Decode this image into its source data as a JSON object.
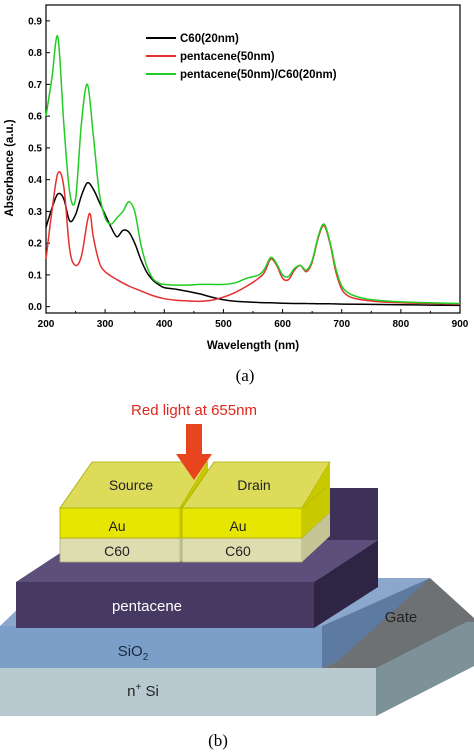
{
  "chart_data": {
    "type": "line",
    "xlabel": "Wavelength (nm)",
    "ylabel": "Absorbance (a.u.)",
    "xlim": [
      200,
      900
    ],
    "ylim": [
      -0.02,
      0.95
    ],
    "xticks": [
      "200",
      "300",
      "400",
      "500",
      "600",
      "700",
      "800",
      "900"
    ],
    "yticks": [
      "0.0",
      "0.1",
      "0.2",
      "0.3",
      "0.4",
      "0.5",
      "0.6",
      "0.7",
      "0.8",
      "0.9"
    ],
    "legend_position": "top-right",
    "series": [
      {
        "name": "C60(20nm)",
        "color": "#000000",
        "x": [
          200,
          210,
          220,
          230,
          240,
          250,
          260,
          270,
          280,
          290,
          300,
          310,
          320,
          330,
          340,
          350,
          360,
          370,
          380,
          390,
          400,
          420,
          440,
          460,
          480,
          500,
          520,
          540,
          560,
          580,
          600,
          620,
          640,
          660,
          680,
          700,
          750,
          800,
          850,
          900
        ],
        "y": [
          0.25,
          0.31,
          0.355,
          0.34,
          0.27,
          0.29,
          0.35,
          0.39,
          0.37,
          0.33,
          0.29,
          0.25,
          0.22,
          0.24,
          0.235,
          0.2,
          0.15,
          0.11,
          0.085,
          0.07,
          0.06,
          0.055,
          0.048,
          0.04,
          0.03,
          0.022,
          0.017,
          0.015,
          0.013,
          0.012,
          0.011,
          0.01,
          0.01,
          0.009,
          0.009,
          0.008,
          0.007,
          0.006,
          0.005,
          0.004
        ]
      },
      {
        "name": "pentacene(50nm)",
        "color": "#e53030",
        "x": [
          200,
          210,
          220,
          230,
          240,
          250,
          260,
          270,
          275,
          280,
          290,
          300,
          320,
          340,
          360,
          380,
          400,
          420,
          440,
          460,
          480,
          500,
          520,
          540,
          560,
          570,
          580,
          590,
          600,
          610,
          620,
          630,
          640,
          650,
          660,
          670,
          680,
          690,
          700,
          710,
          720,
          740,
          760,
          800,
          850,
          900
        ],
        "y": [
          0.15,
          0.3,
          0.42,
          0.38,
          0.18,
          0.13,
          0.16,
          0.27,
          0.29,
          0.22,
          0.14,
          0.11,
          0.085,
          0.065,
          0.05,
          0.035,
          0.025,
          0.02,
          0.018,
          0.017,
          0.02,
          0.03,
          0.045,
          0.065,
          0.09,
          0.11,
          0.15,
          0.13,
          0.09,
          0.085,
          0.115,
          0.13,
          0.11,
          0.14,
          0.215,
          0.255,
          0.2,
          0.11,
          0.055,
          0.035,
          0.027,
          0.02,
          0.016,
          0.012,
          0.01,
          0.008
        ]
      },
      {
        "name": "pentacene(50nm)/C60(20nm)",
        "color": "#22cc22",
        "x": [
          200,
          210,
          220,
          230,
          240,
          250,
          260,
          270,
          280,
          290,
          300,
          310,
          320,
          330,
          340,
          350,
          360,
          370,
          380,
          390,
          400,
          420,
          440,
          460,
          480,
          500,
          520,
          540,
          560,
          570,
          580,
          590,
          600,
          610,
          620,
          630,
          640,
          650,
          660,
          670,
          680,
          690,
          700,
          710,
          720,
          740,
          760,
          800,
          850,
          900
        ],
        "y": [
          0.6,
          0.72,
          0.85,
          0.58,
          0.36,
          0.34,
          0.58,
          0.7,
          0.54,
          0.36,
          0.28,
          0.26,
          0.28,
          0.3,
          0.33,
          0.3,
          0.2,
          0.13,
          0.09,
          0.075,
          0.07,
          0.068,
          0.068,
          0.07,
          0.07,
          0.07,
          0.075,
          0.09,
          0.1,
          0.12,
          0.155,
          0.135,
          0.1,
          0.095,
          0.12,
          0.13,
          0.115,
          0.145,
          0.22,
          0.26,
          0.205,
          0.12,
          0.065,
          0.045,
          0.035,
          0.025,
          0.02,
          0.015,
          0.012,
          0.01
        ]
      }
    ]
  },
  "caption_a": "(a)",
  "caption_b": "(b)",
  "device": {
    "light_label": "Red light at 655nm",
    "source": "Source",
    "drain": "Drain",
    "au_left": "Au",
    "au_right": "Au",
    "c60_left": "C60",
    "c60_right": "C60",
    "pentacene": "pentacene",
    "sio2": "SiO",
    "sio2_sub": "2",
    "gate": "Gate",
    "substrate_n": "n",
    "substrate_sup": "+",
    "substrate_si": " Si",
    "colors": {
      "arrow": "#e8451f",
      "light_text": "#e0261c",
      "au": "#e6e600",
      "c60": "#ddddb0",
      "pentacene": "#463a62",
      "sio2": "#7b9fc8",
      "substrate": "#b8cad0",
      "gate": "#6e7173"
    }
  }
}
